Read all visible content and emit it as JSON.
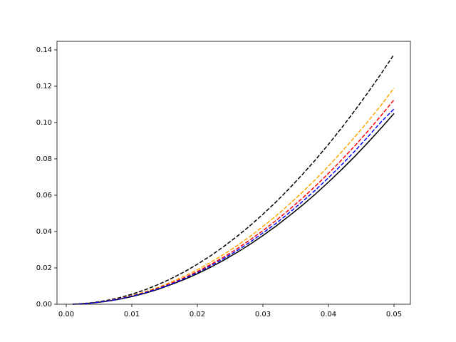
{
  "chart_data": {
    "type": "line",
    "x": [
      0.001,
      0.002,
      0.004,
      0.006,
      0.008,
      0.01,
      0.012,
      0.014,
      0.016,
      0.018,
      0.02,
      0.022,
      0.024,
      0.026,
      0.028,
      0.03,
      0.032,
      0.034,
      0.036,
      0.038,
      0.04,
      0.042,
      0.044,
      0.046,
      0.048,
      0.05
    ],
    "series": [
      {
        "color": "#000000",
        "style": "solid",
        "values": [
          4e-05,
          0.00017,
          0.00067,
          0.0015,
          0.0027,
          0.0042,
          0.006,
          0.0082,
          0.0108,
          0.0136,
          0.0168,
          0.0203,
          0.0242,
          0.0284,
          0.0329,
          0.0378,
          0.043,
          0.0486,
          0.0544,
          0.0606,
          0.0672,
          0.0741,
          0.0813,
          0.0889,
          0.0968,
          0.105
        ]
      },
      {
        "color": "#000000",
        "style": "dashed",
        "values": [
          6e-05,
          0.00022,
          0.00088,
          0.002,
          0.0035,
          0.0055,
          0.0079,
          0.0108,
          0.0141,
          0.0178,
          0.022,
          0.0266,
          0.0317,
          0.0372,
          0.0431,
          0.0495,
          0.0563,
          0.0636,
          0.0713,
          0.0794,
          0.088,
          0.097,
          0.1065,
          0.1164,
          0.1267,
          0.1375
        ]
      },
      {
        "color": "#ffa500",
        "style": "dashed",
        "values": [
          5e-05,
          0.00019,
          0.00076,
          0.0017,
          0.003,
          0.0048,
          0.0068,
          0.0093,
          0.0122,
          0.0154,
          0.019,
          0.023,
          0.0274,
          0.0321,
          0.0372,
          0.0428,
          0.0486,
          0.0549,
          0.0616,
          0.0686,
          0.076,
          0.0838,
          0.092,
          0.1005,
          0.1094,
          0.119
        ]
      },
      {
        "color": "#ff0000",
        "style": "dashed",
        "values": [
          5e-05,
          0.00018,
          0.00072,
          0.0016,
          0.0029,
          0.0045,
          0.0065,
          0.0088,
          0.0115,
          0.0146,
          0.018,
          0.0218,
          0.0259,
          0.0304,
          0.0353,
          0.0405,
          0.0461,
          0.052,
          0.0583,
          0.065,
          0.072,
          0.0794,
          0.0871,
          0.0952,
          0.1037,
          0.1125
        ]
      },
      {
        "color": "#0000ff",
        "style": "dashed",
        "values": [
          4e-05,
          0.00017,
          0.0007,
          0.0016,
          0.0028,
          0.0044,
          0.0063,
          0.0085,
          0.0111,
          0.0141,
          0.0174,
          0.0211,
          0.0251,
          0.0294,
          0.0341,
          0.0392,
          0.0445,
          0.0503,
          0.0564,
          0.0628,
          0.0696,
          0.0767,
          0.0842,
          0.0921,
          0.1002,
          0.1075
        ]
      }
    ],
    "xlim": [
      -0.00141,
      0.0525
    ],
    "ylim": [
      0,
      0.1447
    ],
    "xticks": [
      {
        "value": 0,
        "label": "0.00"
      },
      {
        "value": 0.01,
        "label": "0.01"
      },
      {
        "value": 0.02,
        "label": "0.02"
      },
      {
        "value": 0.03,
        "label": "0.03"
      },
      {
        "value": 0.04,
        "label": "0.04"
      },
      {
        "value": 0.05,
        "label": "0.05"
      }
    ],
    "yticks": [
      {
        "value": 0,
        "label": "0.00"
      },
      {
        "value": 0.02,
        "label": "0.02"
      },
      {
        "value": 0.04,
        "label": "0.04"
      },
      {
        "value": 0.06,
        "label": "0.06"
      },
      {
        "value": 0.08,
        "label": "0.08"
      },
      {
        "value": 0.1,
        "label": "0.10"
      },
      {
        "value": 0.12,
        "label": "0.12"
      },
      {
        "value": 0.14,
        "label": "0.14"
      }
    ],
    "grid": false
  }
}
